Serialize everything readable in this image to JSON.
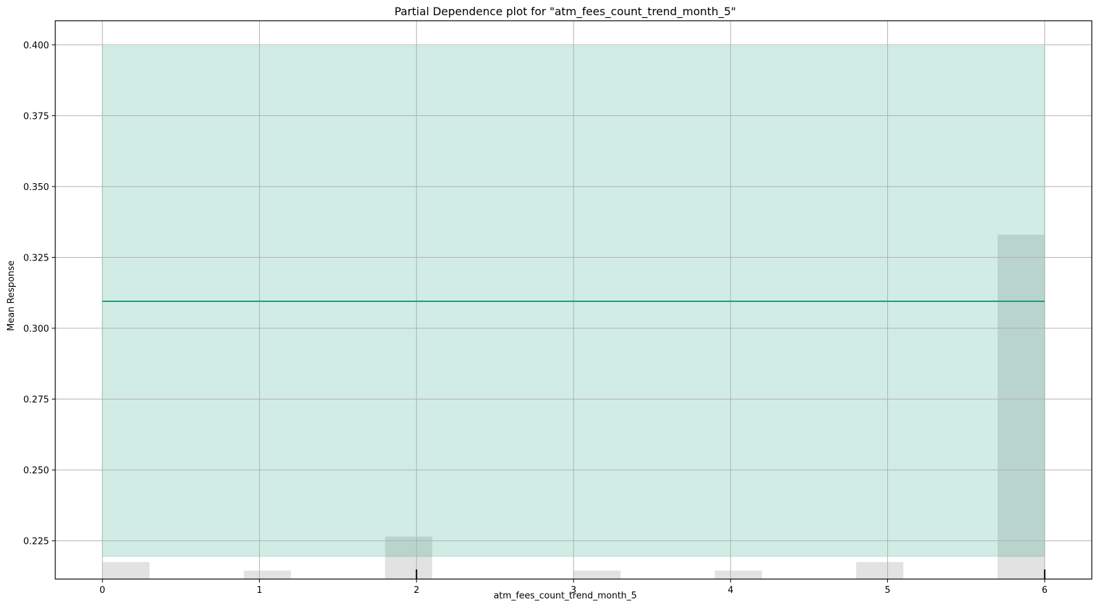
{
  "chart_data": {
    "type": "line",
    "title": "Partial Dependence plot for \"atm_fees_count_trend_month_5\"",
    "xlabel": "atm_fees_count_trend_month_5",
    "ylabel": "Mean Response",
    "xlim": [
      -0.3,
      6.3
    ],
    "ylim": [
      0.2115,
      0.4085
    ],
    "xticks": [
      0,
      1,
      2,
      3,
      4,
      5,
      6
    ],
    "yticks": [
      0.225,
      0.25,
      0.275,
      0.3,
      0.325,
      0.35,
      0.375,
      0.4
    ],
    "ytick_labels": [
      "0.225",
      "0.250",
      "0.275",
      "0.300",
      "0.325",
      "0.350",
      "0.375",
      "0.400"
    ],
    "grid": true,
    "series": [
      {
        "type": "line",
        "x": [
          0,
          1,
          2,
          3,
          4,
          5,
          6
        ],
        "y": [
          0.3095,
          0.3095,
          0.3095,
          0.3095,
          0.3095,
          0.3095,
          0.3095
        ],
        "color": "#1a9e77"
      },
      {
        "type": "band",
        "x": [
          0,
          6
        ],
        "lower": [
          0.2195,
          0.2195
        ],
        "upper": [
          0.3995,
          0.3995
        ],
        "color": "#1a9e77"
      },
      {
        "type": "histogram",
        "x_start": [
          0,
          0.9,
          1.8,
          3.0,
          3.9,
          4.8,
          5.7
        ],
        "x_end": [
          0.3,
          1.2,
          2.1,
          3.3,
          4.2,
          5.1,
          6.0
        ],
        "y_top": [
          0.2175,
          0.2145,
          0.2265,
          0.2145,
          0.2145,
          0.2175,
          0.333
        ],
        "color": "#d3d3d3"
      }
    ],
    "rug_ticks": [
      2,
      6
    ]
  }
}
